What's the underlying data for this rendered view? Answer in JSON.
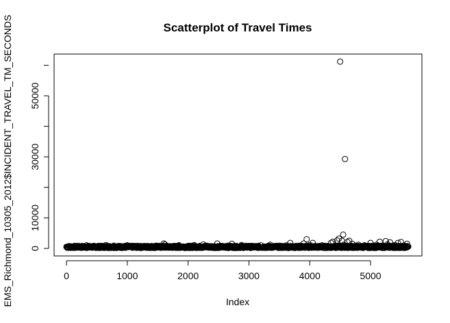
{
  "chart_data": {
    "type": "scatter",
    "title": "Scatterplot of Travel Times",
    "xlabel": "Index",
    "ylabel": "EMS_Richmond_10305_2012$INCIDENT_TRAVEL_TM_SECONDS",
    "xlim": [
      0,
      5650
    ],
    "ylim": [
      0,
      61500
    ],
    "x_ticks": [
      0,
      1000,
      2000,
      3000,
      4000,
      5000
    ],
    "y_ticks": [
      0,
      10000,
      30000,
      50000
    ],
    "grid": false,
    "legend": "none",
    "marker": "open-circle",
    "series": [
      {
        "points": [
          [
            10,
            400
          ],
          [
            60,
            250
          ],
          [
            120,
            500
          ],
          [
            180,
            350
          ],
          [
            240,
            700
          ],
          [
            300,
            450
          ],
          [
            330,
            1000
          ],
          [
            380,
            300
          ],
          [
            450,
            600
          ],
          [
            520,
            800
          ],
          [
            600,
            350
          ],
          [
            650,
            1100
          ],
          [
            700,
            500
          ],
          [
            780,
            900
          ],
          [
            820,
            400
          ],
          [
            900,
            650
          ],
          [
            980,
            300
          ],
          [
            1000,
            1000
          ],
          [
            1060,
            550
          ],
          [
            1120,
            800
          ],
          [
            1200,
            400
          ],
          [
            1280,
            600
          ],
          [
            1350,
            750
          ],
          [
            1400,
            350
          ],
          [
            1480,
            900
          ],
          [
            1560,
            500
          ],
          [
            1600,
            1600
          ],
          [
            1620,
            1300
          ],
          [
            1700,
            700
          ],
          [
            1780,
            450
          ],
          [
            1850,
            1050
          ],
          [
            1920,
            600
          ],
          [
            2000,
            800
          ],
          [
            2050,
            500
          ],
          [
            2100,
            1100
          ],
          [
            2180,
            650
          ],
          [
            2250,
            1300
          ],
          [
            2300,
            900
          ],
          [
            2400,
            500
          ],
          [
            2480,
            1600
          ],
          [
            2550,
            700
          ],
          [
            2650,
            900
          ],
          [
            2720,
            1500
          ],
          [
            2800,
            600
          ],
          [
            2880,
            1100
          ],
          [
            2950,
            500
          ],
          [
            3000,
            800
          ],
          [
            3100,
            700
          ],
          [
            3200,
            1000
          ],
          [
            3300,
            650
          ],
          [
            3350,
            1200
          ],
          [
            3450,
            800
          ],
          [
            3550,
            600
          ],
          [
            3620,
            1000
          ],
          [
            3680,
            1800
          ],
          [
            3750,
            700
          ],
          [
            3850,
            900
          ],
          [
            3900,
            1600
          ],
          [
            3950,
            3000
          ],
          [
            4000,
            1100
          ],
          [
            4050,
            1800
          ],
          [
            4100,
            700
          ],
          [
            4200,
            1000
          ],
          [
            4300,
            500
          ],
          [
            4350,
            1800
          ],
          [
            4380,
            2200
          ],
          [
            4420,
            900
          ],
          [
            4450,
            2600
          ],
          [
            4480,
            3200
          ],
          [
            4500,
            400
          ],
          [
            4500,
            61200
          ],
          [
            4530,
            2500
          ],
          [
            4550,
            4500
          ],
          [
            4560,
            1200
          ],
          [
            4580,
            29300
          ],
          [
            4600,
            800
          ],
          [
            4620,
            2100
          ],
          [
            4650,
            2500
          ],
          [
            4700,
            1500
          ],
          [
            4750,
            900
          ],
          [
            4800,
            1200
          ],
          [
            4850,
            600
          ],
          [
            4900,
            1000
          ],
          [
            4950,
            700
          ],
          [
            5000,
            1800
          ],
          [
            5050,
            900
          ],
          [
            5100,
            1200
          ],
          [
            5150,
            2200
          ],
          [
            5200,
            700
          ],
          [
            5250,
            2400
          ],
          [
            5280,
            1300
          ],
          [
            5320,
            2000
          ],
          [
            5350,
            800
          ],
          [
            5400,
            1100
          ],
          [
            5450,
            1800
          ],
          [
            5500,
            2100
          ],
          [
            5550,
            900
          ],
          [
            5600,
            1500
          ],
          [
            5620,
            600
          ]
        ]
      }
    ]
  }
}
